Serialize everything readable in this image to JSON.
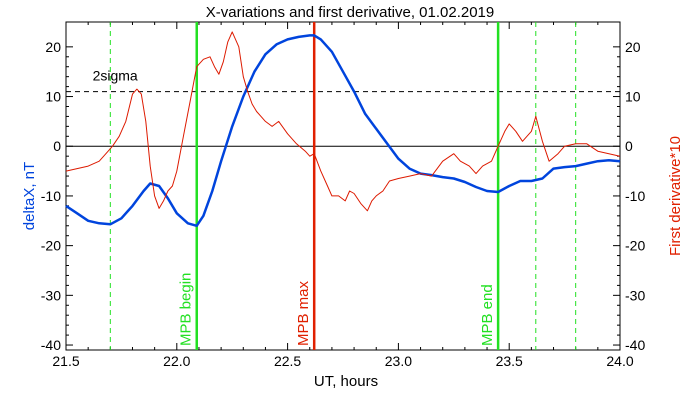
{
  "chart_data": {
    "type": "line",
    "title": "X-variations and first derivative, 01.02.2019",
    "xlabel": "UT, hours",
    "ylabel_left": "deltaX, nT",
    "ylabel_right": "First derivative*10",
    "xlim": [
      21.5,
      24.0
    ],
    "ylim": [
      -41,
      25
    ],
    "x_ticks": [
      "21.5",
      "22.0",
      "22.5",
      "23.0",
      "23.5",
      "24.0"
    ],
    "y_ticks": [
      "20",
      "10",
      "0",
      "-10",
      "-20",
      "-30",
      "-40"
    ],
    "sigma_level": 11,
    "sigma_label": "2sigma",
    "colors": {
      "deltaX": "#0044dd",
      "derivative": "#dd1a00",
      "mpb_markers": "#22e022",
      "mpb_max": "#e02000",
      "left_label": "#0044dd",
      "right_label": "#e02000"
    },
    "series": [
      {
        "key": "deltaX",
        "x": [
          21.5,
          21.55,
          21.6,
          21.65,
          21.7,
          21.75,
          21.8,
          21.85,
          21.88,
          21.92,
          21.96,
          22.0,
          22.05,
          22.09,
          22.12,
          22.16,
          22.2,
          22.25,
          22.3,
          22.35,
          22.4,
          22.45,
          22.5,
          22.55,
          22.6,
          22.62,
          22.65,
          22.7,
          22.75,
          22.8,
          22.85,
          22.9,
          22.95,
          23.0,
          23.05,
          23.1,
          23.15,
          23.2,
          23.25,
          23.3,
          23.35,
          23.4,
          23.45,
          23.5,
          23.55,
          23.6,
          23.65,
          23.7,
          23.75,
          23.8,
          23.85,
          23.9,
          23.95,
          24.0
        ],
        "y": [
          -12,
          -13.5,
          -15,
          -15.5,
          -15.7,
          -14.5,
          -12,
          -9,
          -7.5,
          -8,
          -10.5,
          -13.5,
          -15.5,
          -16,
          -14,
          -9,
          -3,
          4,
          10,
          15,
          18.5,
          20.5,
          21.5,
          22,
          22.3,
          22.3,
          21.5,
          19,
          15,
          11,
          6.5,
          3.5,
          0.5,
          -2.5,
          -4.5,
          -5.5,
          -5.8,
          -6.2,
          -6.5,
          -7.2,
          -8.2,
          -9,
          -9.2,
          -8,
          -7,
          -7,
          -6.5,
          -4.5,
          -4.2,
          -4,
          -3.5,
          -3,
          -2.8,
          -3
        ]
      },
      {
        "key": "derivative",
        "x": [
          21.5,
          21.55,
          21.6,
          21.65,
          21.68,
          21.71,
          21.74,
          21.77,
          21.8,
          21.82,
          21.84,
          21.86,
          21.88,
          21.9,
          21.92,
          21.94,
          21.96,
          21.98,
          22.0,
          22.03,
          22.06,
          22.09,
          22.12,
          22.15,
          22.17,
          22.19,
          22.21,
          22.23,
          22.25,
          22.28,
          22.3,
          22.32,
          22.34,
          22.36,
          22.38,
          22.4,
          22.43,
          22.46,
          22.5,
          22.54,
          22.58,
          22.6,
          22.62,
          22.65,
          22.68,
          22.7,
          22.73,
          22.76,
          22.78,
          22.8,
          22.83,
          22.86,
          22.88,
          22.9,
          22.93,
          22.96,
          23.0,
          23.05,
          23.1,
          23.15,
          23.2,
          23.25,
          23.28,
          23.32,
          23.35,
          23.38,
          23.42,
          23.45,
          23.48,
          23.5,
          23.53,
          23.56,
          23.6,
          23.62,
          23.65,
          23.68,
          23.72,
          23.75,
          23.8,
          23.85,
          23.9,
          23.95,
          24.0
        ],
        "y": [
          -5,
          -4.5,
          -4,
          -3,
          -1.5,
          0,
          2,
          5,
          10.5,
          11.5,
          10.5,
          5,
          -4,
          -10,
          -12.5,
          -11,
          -9,
          -8,
          -5,
          2,
          9,
          16,
          17.5,
          18,
          16,
          14.5,
          17,
          21,
          23,
          20,
          14,
          11,
          8.5,
          7,
          6,
          5,
          4,
          5,
          2.5,
          0.5,
          -1,
          -2,
          -1.5,
          -5,
          -8,
          -10,
          -10,
          -11,
          -9,
          -9.5,
          -11.5,
          -13,
          -11,
          -10,
          -9,
          -7,
          -6.5,
          -6,
          -5.5,
          -6,
          -3,
          -1.5,
          -3,
          -4,
          -5.5,
          -4,
          -3,
          0,
          3,
          4.5,
          3,
          1,
          3,
          6,
          1,
          -3,
          -1.5,
          0,
          0.5,
          0.5,
          -1,
          -1.5,
          -2
        ]
      }
    ],
    "vertical_markers": [
      {
        "x": 21.7,
        "style": "dashed",
        "color": "#22e022",
        "label": ""
      },
      {
        "x": 22.09,
        "style": "solid",
        "color": "#22e022",
        "label": "MPB begin"
      },
      {
        "x": 22.62,
        "style": "solid",
        "color": "#e02000",
        "label": "MPB max"
      },
      {
        "x": 23.45,
        "style": "solid",
        "color": "#22e022",
        "label": "MPB end"
      },
      {
        "x": 23.62,
        "style": "dashed",
        "color": "#22e022",
        "label": ""
      },
      {
        "x": 23.8,
        "style": "dashed",
        "color": "#22e022",
        "label": ""
      }
    ]
  }
}
